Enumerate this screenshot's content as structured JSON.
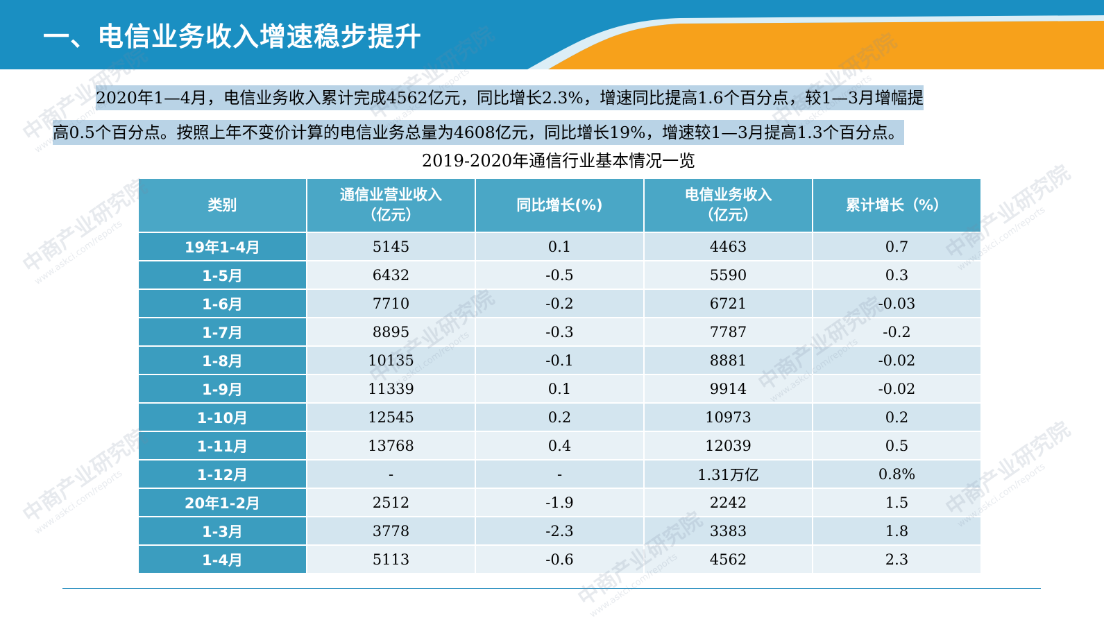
{
  "header": {
    "title": "一、电信业务收入增速稳步提升",
    "colors": {
      "blue": "#1a8fc2",
      "orange": "#f7a11b"
    }
  },
  "paragraph": {
    "line1": "2020年1—4月，电信业务收入累计完成4562亿元，同比增长2.3%，增速同比提高1.6个百分点，较1—3月增幅提",
    "line2": "高0.5个百分点。按照上年不变价计算的电信业务总量为4608亿元，同比增长19%，增速较1—3月提高1.3个百分点。"
  },
  "table": {
    "caption": "2019-2020年通信行业基本情况一览",
    "headers": [
      {
        "line1": "类别",
        "line2": ""
      },
      {
        "line1": "通信业营业收入",
        "line2": "（亿元）"
      },
      {
        "line1": "同比增长(%)",
        "line2": ""
      },
      {
        "line1": "电信业务收入",
        "line2": "（亿元）"
      },
      {
        "line1": "累计增长（%）",
        "line2": ""
      }
    ],
    "rows": [
      {
        "label": "19年1-4月",
        "revenue": "5145",
        "yoy": "0.1",
        "telecom": "4463",
        "cum": "0.7"
      },
      {
        "label": "1-5月",
        "revenue": "6432",
        "yoy": "-0.5",
        "telecom": "5590",
        "cum": "0.3"
      },
      {
        "label": "1-6月",
        "revenue": "7710",
        "yoy": "-0.2",
        "telecom": "6721",
        "cum": "-0.03"
      },
      {
        "label": "1-7月",
        "revenue": "8895",
        "yoy": "-0.3",
        "telecom": "7787",
        "cum": "-0.2"
      },
      {
        "label": "1-8月",
        "revenue": "10135",
        "yoy": "-0.1",
        "telecom": "8881",
        "cum": "-0.02"
      },
      {
        "label": "1-9月",
        "revenue": "11339",
        "yoy": "0.1",
        "telecom": "9914",
        "cum": "-0.02"
      },
      {
        "label": "1-10月",
        "revenue": "12545",
        "yoy": "0.2",
        "telecom": "10973",
        "cum": "0.2"
      },
      {
        "label": "1-11月",
        "revenue": "13768",
        "yoy": "0.4",
        "telecom": "12039",
        "cum": "0.5"
      },
      {
        "label": "1-12月",
        "revenue": "-",
        "yoy": "-",
        "telecom": "1.31万亿",
        "cum": "0.8%"
      },
      {
        "label": "20年1-2月",
        "revenue": "2512",
        "yoy": "-1.9",
        "telecom": "2242",
        "cum": "1.5"
      },
      {
        "label": "1-3月",
        "revenue": "3778",
        "yoy": "-2.3",
        "telecom": "3383",
        "cum": "1.8"
      },
      {
        "label": "1-4月",
        "revenue": "5113",
        "yoy": "-0.6",
        "telecom": "4562",
        "cum": "2.3"
      }
    ]
  },
  "watermark": {
    "text": "中商产业研究院",
    "url": "www.askci.com/reports"
  }
}
